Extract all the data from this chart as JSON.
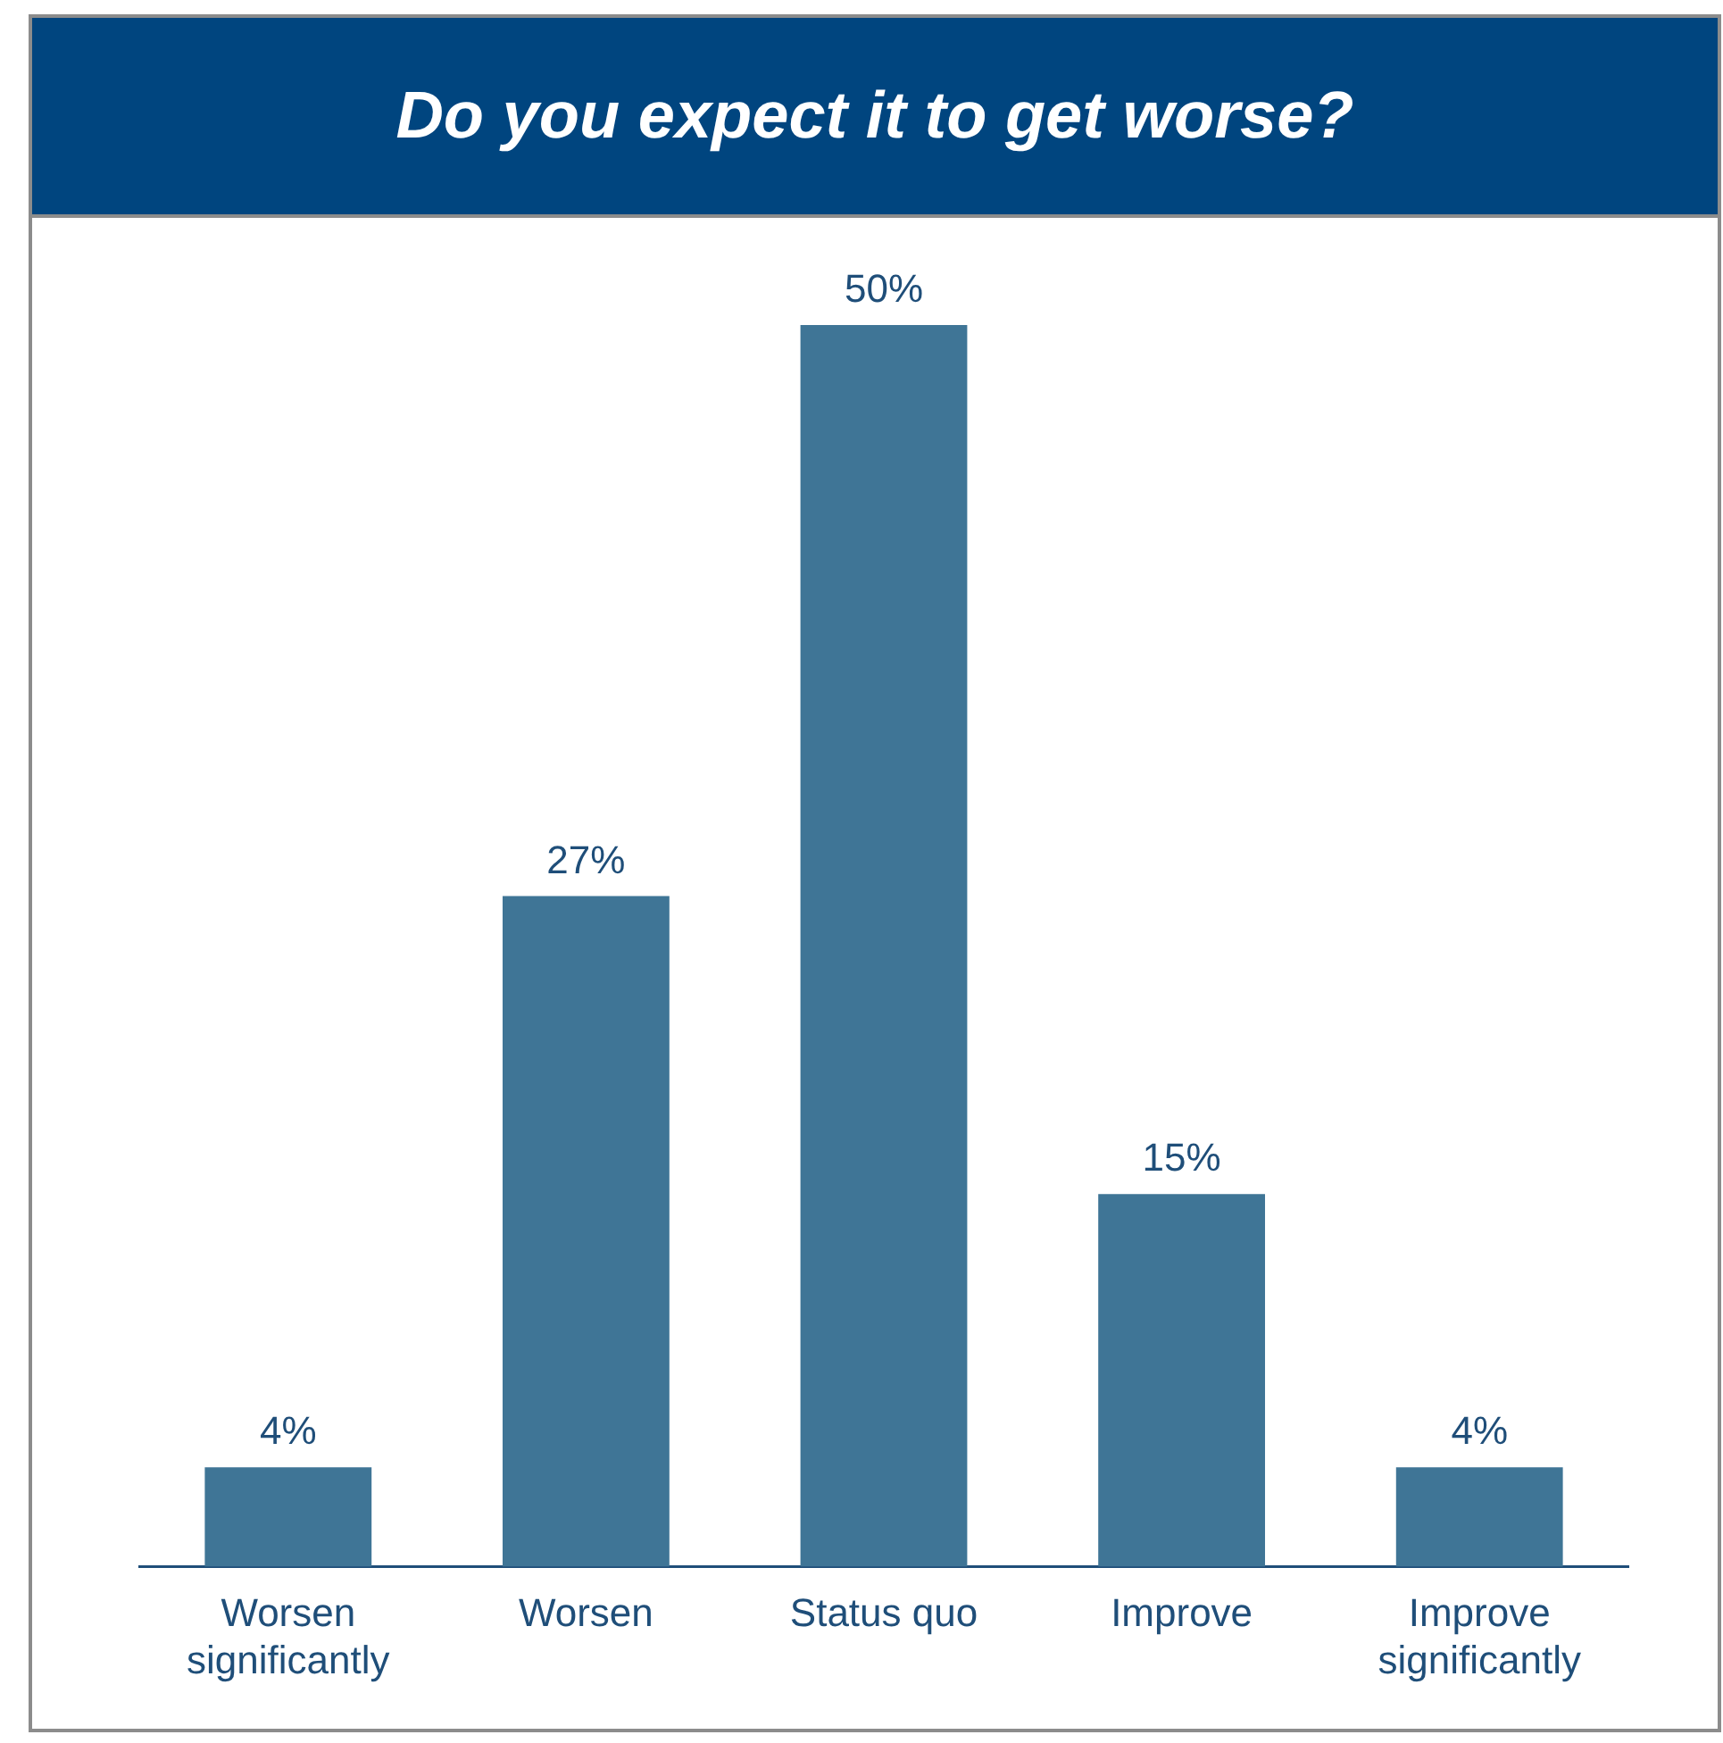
{
  "chart_data": {
    "type": "bar",
    "title": "Do you expect it to get worse?",
    "categories": [
      "Worsen significantly",
      "Worsen",
      "Status quo",
      "Improve",
      "Improve significantly"
    ],
    "values": [
      4,
      27,
      50,
      15,
      4
    ],
    "value_labels": [
      "4%",
      "27%",
      "50%",
      "15%",
      "4%"
    ],
    "color": "#3f7596",
    "grid": false,
    "legend": false
  }
}
